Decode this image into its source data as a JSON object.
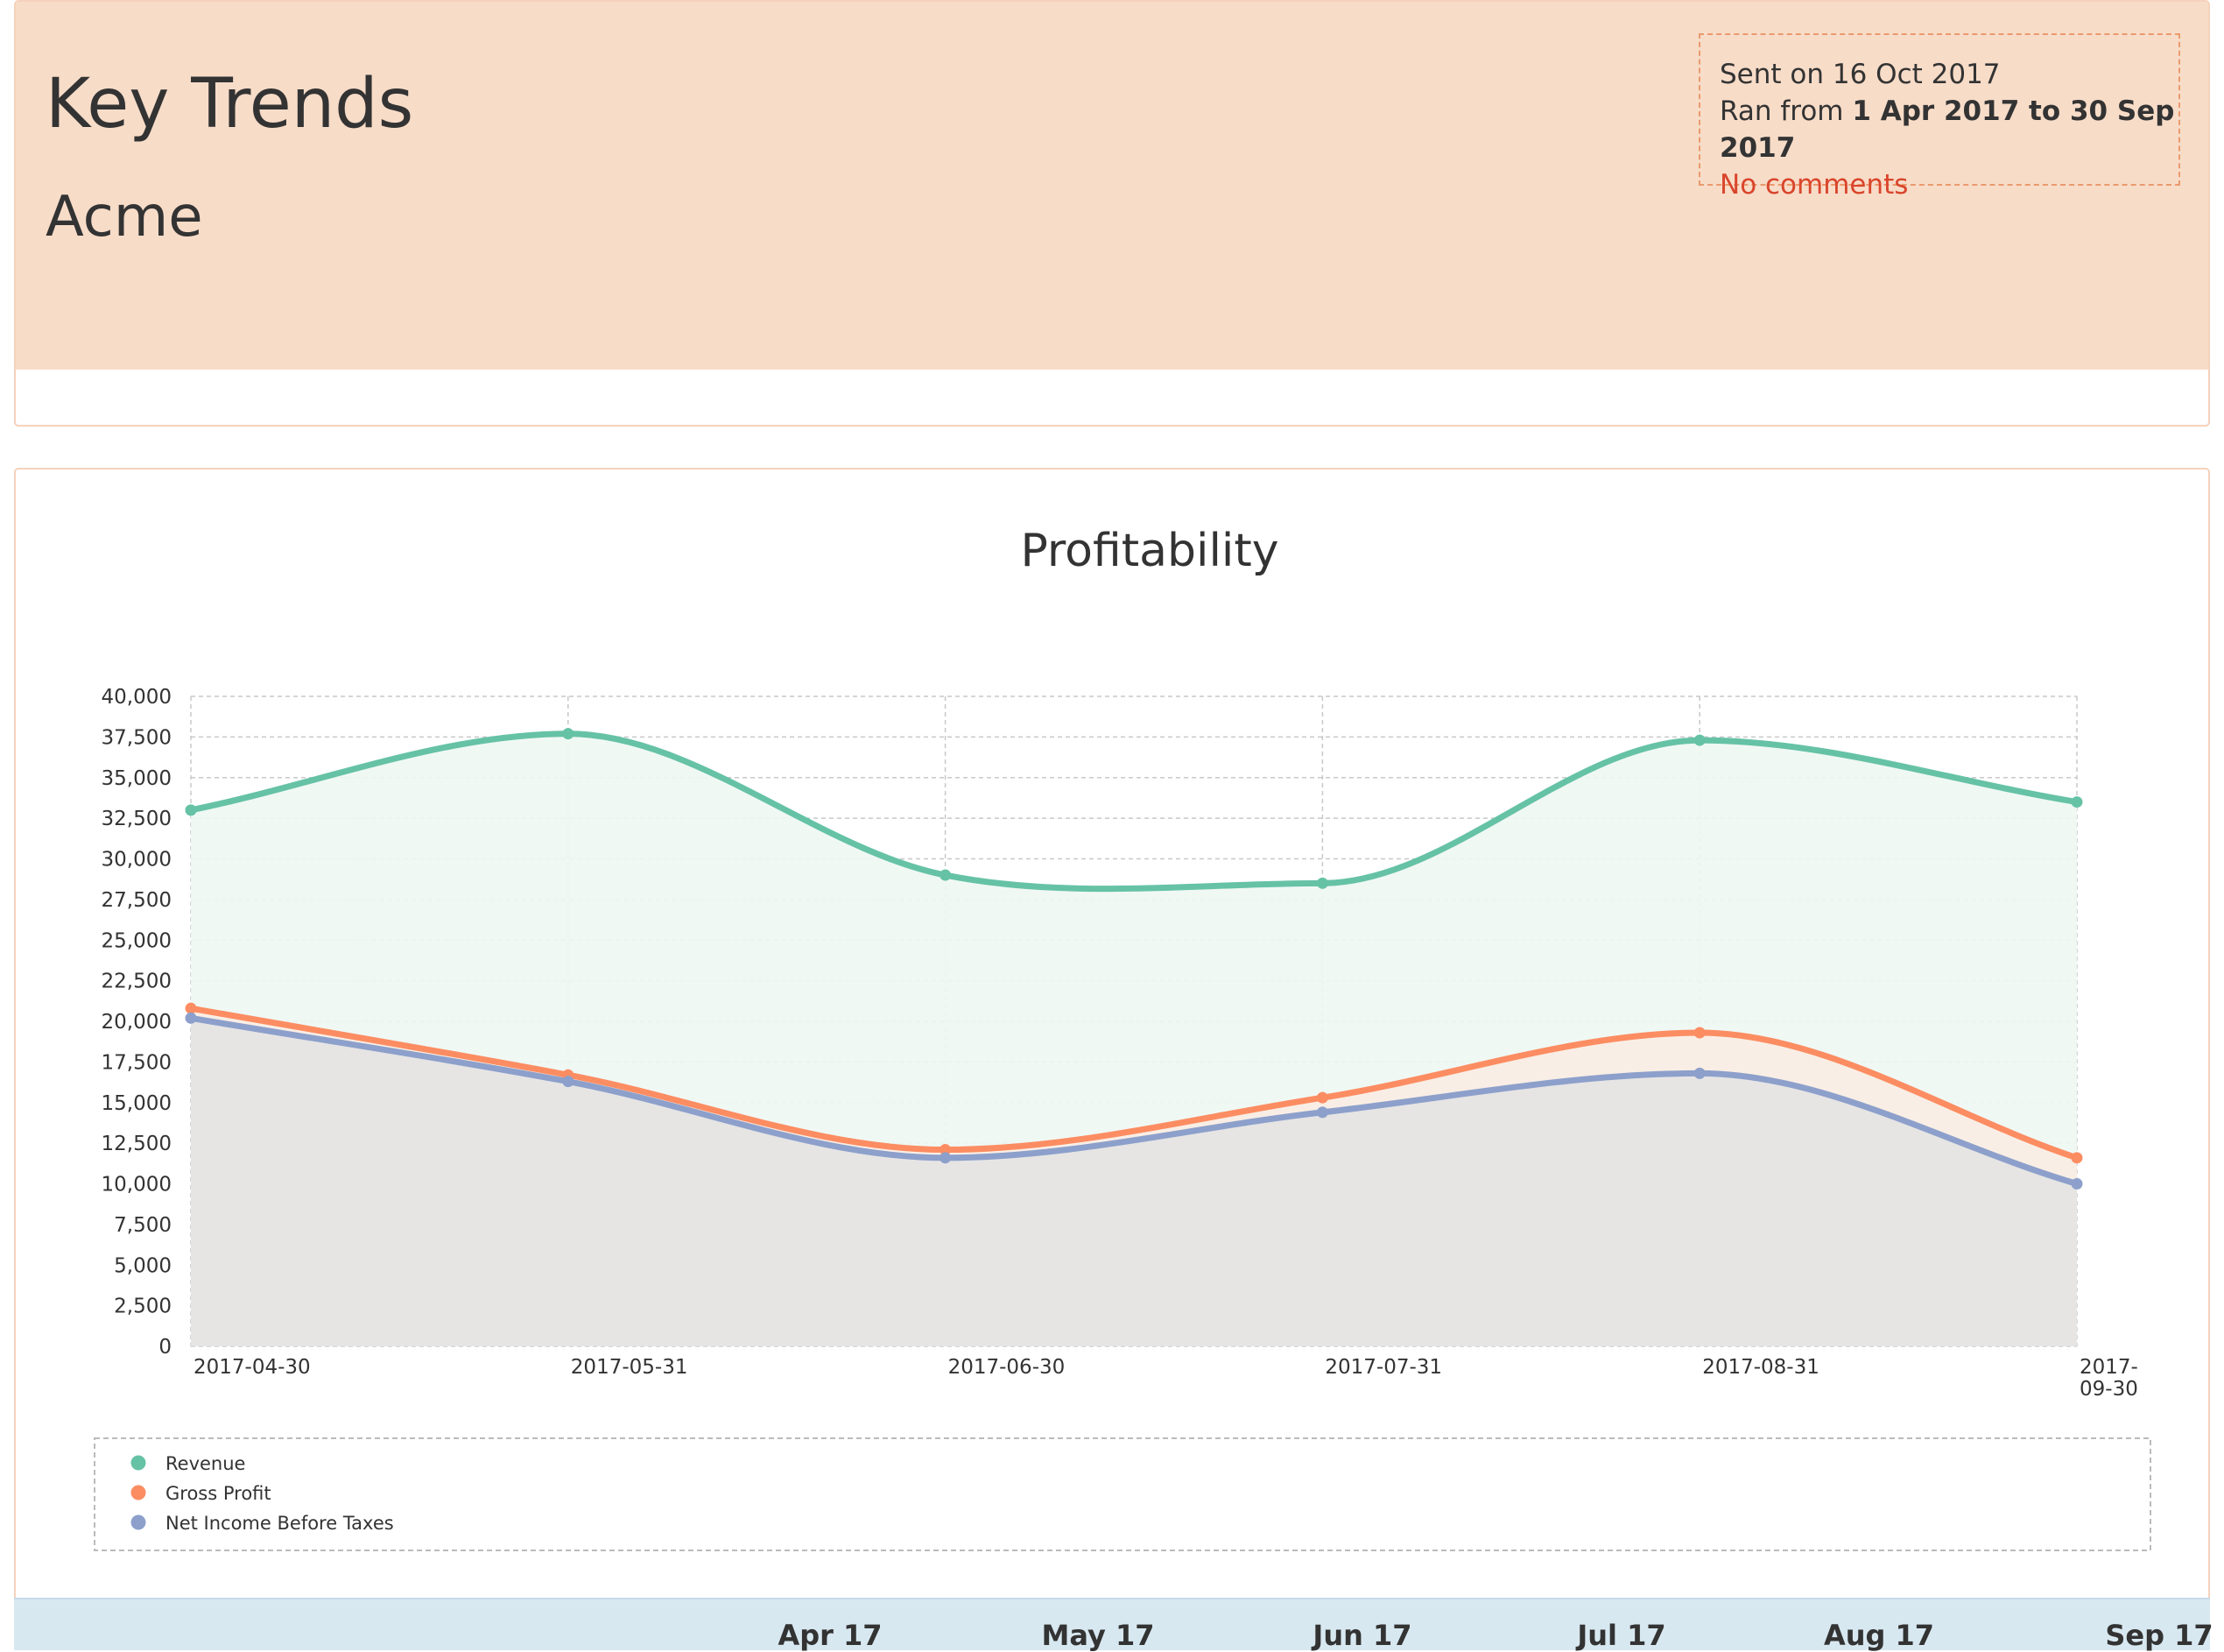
{
  "header": {
    "title": "Key Trends",
    "company": "Acme",
    "sent_label": "Sent on 16 Oct 2017",
    "ran_prefix": "Ran from ",
    "ran_range": "1 Apr 2017 to 30 Sep 2017",
    "comments": "No comments"
  },
  "colors": {
    "revenue": "#66c2a5",
    "gross_profit": "#fc8d62",
    "net_income": "#8da0cb",
    "header_band": "#f7dcc8",
    "comments_text": "#d9452b"
  },
  "chart_data": {
    "type": "line",
    "title": "Profitability",
    "xlabel": "",
    "ylabel": "",
    "categories": [
      "2017-04-30",
      "2017-05-31",
      "2017-06-30",
      "2017-07-31",
      "2017-08-31",
      "2017-09-30"
    ],
    "ylim": [
      0,
      40000
    ],
    "yticks": [
      0,
      2500,
      5000,
      7500,
      10000,
      12500,
      15000,
      17500,
      20000,
      22500,
      25000,
      27500,
      30000,
      32500,
      35000,
      37500,
      40000
    ],
    "ytick_labels": [
      "0",
      "2,500",
      "5,000",
      "7,500",
      "10,000",
      "12,500",
      "15,000",
      "17,500",
      "20,000",
      "22,500",
      "25,000",
      "27,500",
      "30,000",
      "32,500",
      "35,000",
      "37,500",
      "40,000"
    ],
    "grid": true,
    "area_fill": true,
    "smooth": true,
    "legend_position": "bottom",
    "series": [
      {
        "name": "Revenue",
        "color": "#66c2a5",
        "values": [
          33000,
          37700,
          29000,
          28500,
          37300,
          33500
        ]
      },
      {
        "name": "Gross Profit",
        "color": "#fc8d62",
        "values": [
          20800,
          16700,
          12100,
          15300,
          19300,
          11600
        ]
      },
      {
        "name": "Net Income Before Taxes",
        "color": "#8da0cb",
        "values": [
          20200,
          16300,
          11600,
          14400,
          16800,
          10000
        ]
      }
    ]
  },
  "table": {
    "months": [
      "Apr 17",
      "May 17",
      "Jun 17",
      "Jul 17",
      "Aug 17",
      "Sep 17"
    ]
  }
}
